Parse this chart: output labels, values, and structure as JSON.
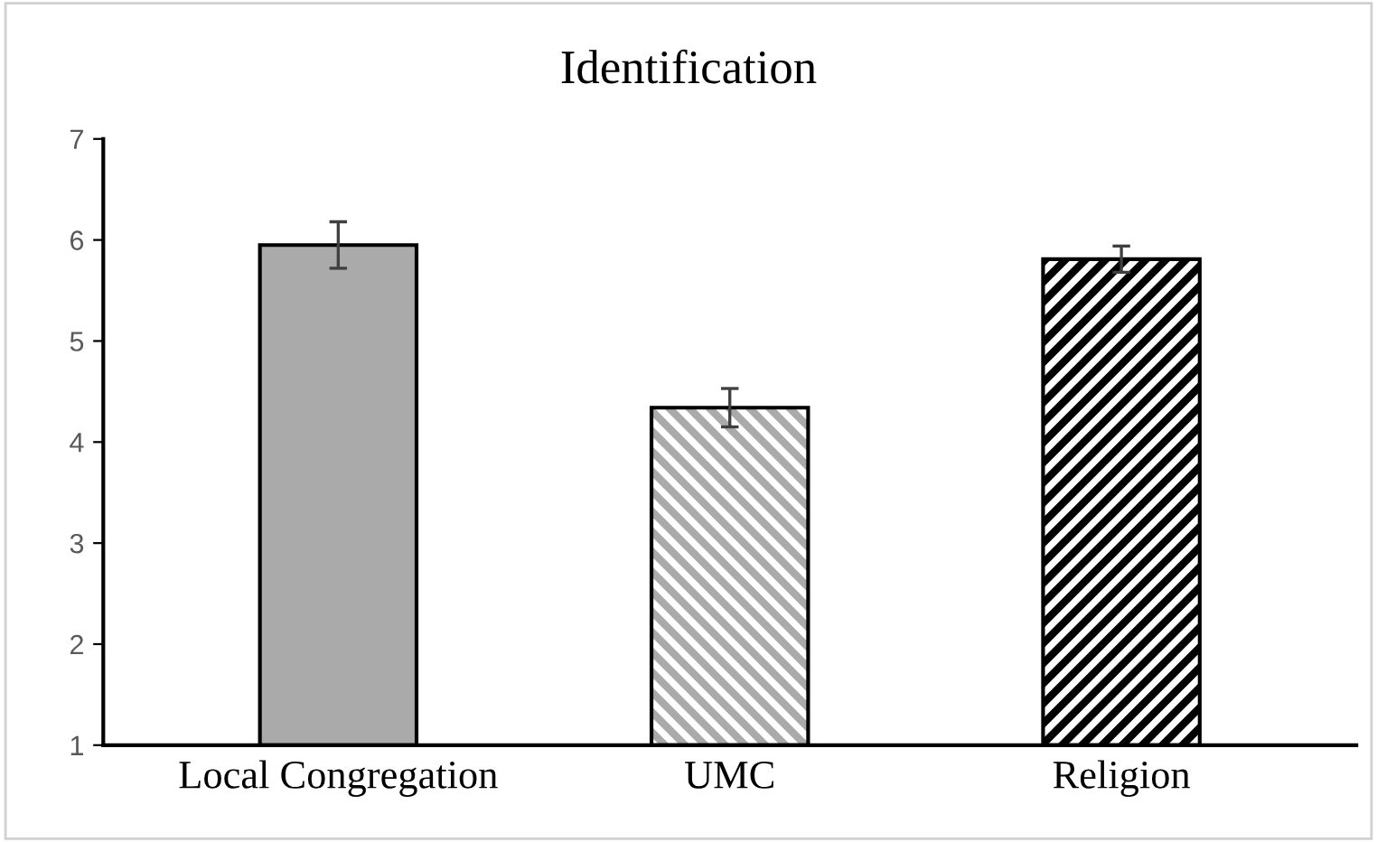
{
  "chart_data": {
    "type": "bar",
    "title": "Identification",
    "categories": [
      "Local Congregation",
      "UMC",
      "Religion"
    ],
    "values": [
      5.95,
      4.34,
      5.81
    ],
    "errors": [
      0.23,
      0.19,
      0.13
    ],
    "colors": [
      "#aaaaaa",
      "#aaaaaa",
      "#000000"
    ],
    "ylim": [
      1,
      7
    ],
    "yticks": [
      1,
      2,
      3,
      4,
      5,
      6,
      7
    ],
    "grid": false
  }
}
